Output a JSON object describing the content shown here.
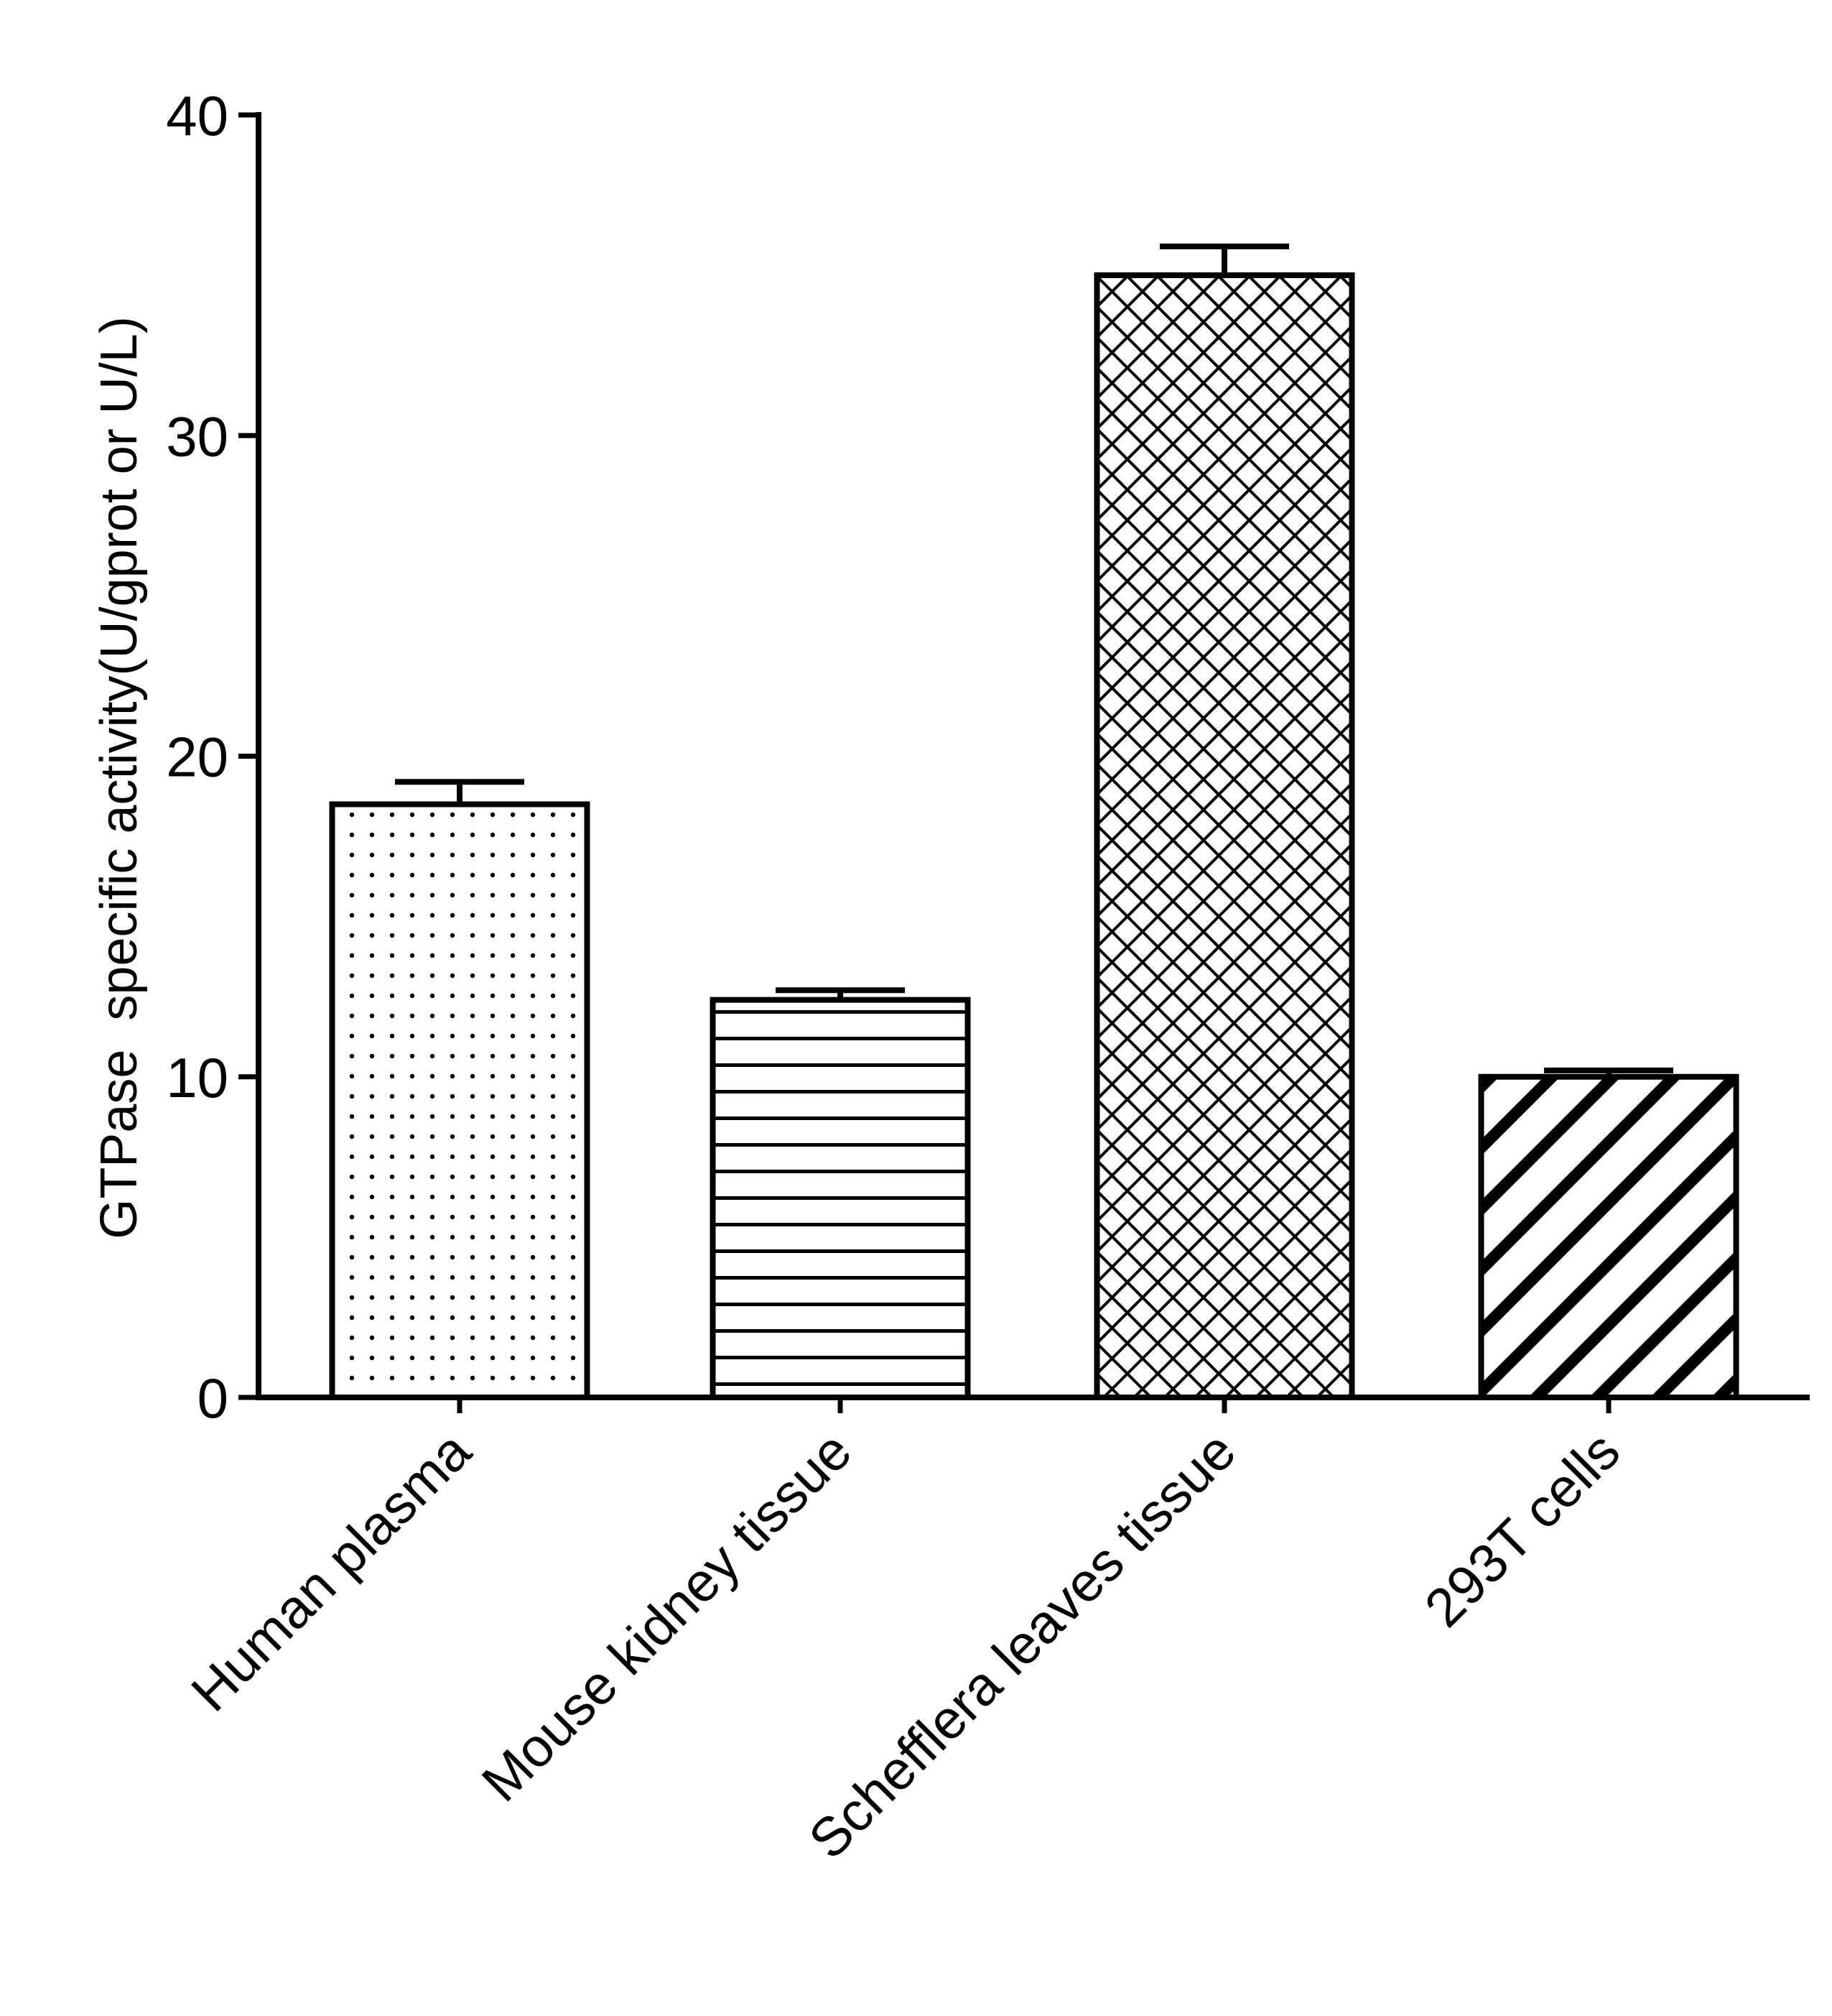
{
  "chart_data": {
    "type": "bar",
    "title": "",
    "xlabel": "",
    "ylabel": "GTPase  specific activity(U/gprot or U/L)",
    "ylim": [
      0,
      40
    ],
    "yticks": [
      "0",
      "10",
      "20",
      "30",
      "40"
    ],
    "categories": [
      "Human plasma",
      "Mouse kidney tissue",
      "Schefflera leaves tissue",
      "293T cells"
    ],
    "values": [
      18.5,
      12.4,
      35.0,
      10.0
    ],
    "errors": [
      0.7,
      0.3,
      0.9,
      0.2
    ],
    "patterns": [
      "dots",
      "horizontal-lines",
      "crosshatch",
      "diagonal-stripes"
    ],
    "grid": false,
    "legend": "none"
  },
  "colors": {
    "ink": "#000000",
    "background": "#ffffff"
  }
}
